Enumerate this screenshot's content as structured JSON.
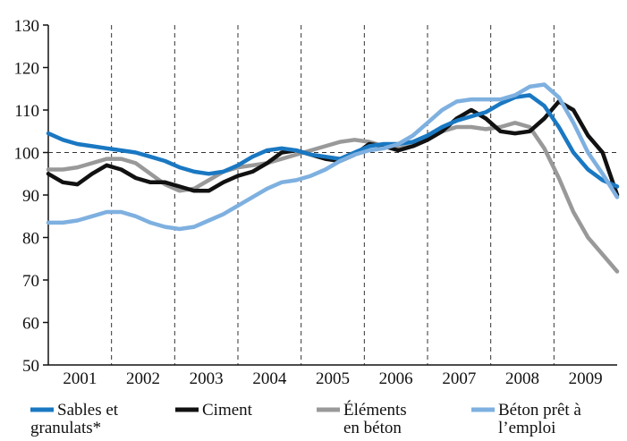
{
  "chart_data": {
    "type": "line",
    "title": "",
    "xlabel": "",
    "ylabel": "",
    "ylim": [
      50,
      130
    ],
    "yticks": [
      50,
      60,
      70,
      80,
      90,
      100,
      110,
      120,
      130
    ],
    "xlim": [
      2000.0,
      2009.75
    ],
    "year_labels": [
      "2001",
      "2002",
      "2003",
      "2004",
      "2005",
      "2006",
      "2007",
      "2008",
      "2009"
    ],
    "reference_line": 100,
    "grid": "dashed vertical lines between years; dashed horizontal line at 100",
    "legend_position": "bottom",
    "series": [
      {
        "name": "Sables et granulats*",
        "color": "#1a78c2",
        "x": [
          2000.0,
          2000.25,
          2000.5,
          2000.75,
          2001.0,
          2001.25,
          2001.5,
          2001.75,
          2002.0,
          2002.25,
          2002.5,
          2002.75,
          2003.0,
          2003.25,
          2003.5,
          2003.75,
          2004.0,
          2004.25,
          2004.5,
          2004.75,
          2005.0,
          2005.25,
          2005.5,
          2005.75,
          2006.0,
          2006.25,
          2006.5,
          2006.75,
          2007.0,
          2007.25,
          2007.5,
          2007.75,
          2008.0,
          2008.25,
          2008.5,
          2008.75,
          2009.0,
          2009.25,
          2009.5,
          2009.75
        ],
        "y": [
          104.5,
          103,
          102,
          101.5,
          101,
          100.5,
          100,
          99,
          98,
          96.5,
          95.5,
          95,
          95.5,
          97,
          99,
          100.5,
          101,
          100.5,
          99.5,
          99,
          98.5,
          100,
          101.5,
          102,
          102,
          102.5,
          104,
          106,
          107.5,
          108.5,
          109.5,
          111.5,
          113,
          113.5,
          111,
          106,
          100,
          96,
          93.5,
          92
        ]
      },
      {
        "name": "Ciment",
        "color": "#111111",
        "x": [
          2000.0,
          2000.25,
          2000.5,
          2000.75,
          2001.0,
          2001.25,
          2001.5,
          2001.75,
          2002.0,
          2002.25,
          2002.5,
          2002.75,
          2003.0,
          2003.25,
          2003.5,
          2003.75,
          2004.0,
          2004.25,
          2004.5,
          2004.75,
          2005.0,
          2005.25,
          2005.5,
          2005.75,
          2006.0,
          2006.25,
          2006.5,
          2006.75,
          2007.0,
          2007.25,
          2007.5,
          2007.75,
          2008.0,
          2008.25,
          2008.5,
          2008.75,
          2009.0,
          2009.25,
          2009.5,
          2009.75
        ],
        "y": [
          95,
          93,
          92.5,
          95,
          97,
          96,
          94,
          93,
          93,
          92,
          91,
          91,
          93,
          94.5,
          95.5,
          97.5,
          100,
          100.5,
          99.5,
          98.5,
          98,
          99.5,
          102,
          101.5,
          100.5,
          101.5,
          103,
          105,
          108,
          110,
          108,
          105,
          104.5,
          105,
          108,
          112,
          110,
          104,
          100,
          90
        ]
      },
      {
        "name": "Éléments en béton",
        "color": "#999999",
        "x": [
          2000.0,
          2000.25,
          2000.5,
          2000.75,
          2001.0,
          2001.25,
          2001.5,
          2001.75,
          2002.0,
          2002.25,
          2002.5,
          2002.75,
          2003.0,
          2003.25,
          2003.5,
          2003.75,
          2004.0,
          2004.25,
          2004.5,
          2004.75,
          2005.0,
          2005.25,
          2005.5,
          2005.75,
          2006.0,
          2006.25,
          2006.5,
          2006.75,
          2007.0,
          2007.25,
          2007.5,
          2007.75,
          2008.0,
          2008.25,
          2008.5,
          2008.75,
          2009.0,
          2009.25,
          2009.5,
          2009.75
        ],
        "y": [
          96,
          96,
          96.5,
          97.5,
          98.5,
          98.5,
          97.5,
          95,
          92.5,
          91,
          91.5,
          93.5,
          95.5,
          96.5,
          97,
          97.5,
          98.5,
          99.5,
          100.5,
          101.5,
          102.5,
          103,
          102.5,
          101.5,
          101,
          101.5,
          103,
          105,
          106,
          106,
          105.5,
          106,
          107,
          106,
          101,
          94,
          86,
          80,
          76,
          72
        ]
      },
      {
        "name": "Béton prêt à l’emploi",
        "color": "#7eb0e0",
        "x": [
          2000.0,
          2000.25,
          2000.5,
          2000.75,
          2001.0,
          2001.25,
          2001.5,
          2001.75,
          2002.0,
          2002.25,
          2002.5,
          2002.75,
          2003.0,
          2003.25,
          2003.5,
          2003.75,
          2004.0,
          2004.25,
          2004.5,
          2004.75,
          2005.0,
          2005.25,
          2005.5,
          2005.75,
          2006.0,
          2006.25,
          2006.5,
          2006.75,
          2007.0,
          2007.25,
          2007.5,
          2007.75,
          2008.0,
          2008.25,
          2008.5,
          2008.75,
          2009.0,
          2009.25,
          2009.5,
          2009.75
        ],
        "y": [
          83.5,
          83.5,
          84,
          85,
          86,
          86,
          85,
          83.5,
          82.5,
          82,
          82.5,
          84,
          85.5,
          87.5,
          89.5,
          91.5,
          93,
          93.5,
          94.5,
          96,
          98,
          99.5,
          100.5,
          101,
          102,
          104,
          107,
          110,
          112,
          112.5,
          112.5,
          112.5,
          113.5,
          115.5,
          116,
          113,
          107,
          100,
          95,
          89.5
        ]
      }
    ]
  },
  "legend": [
    {
      "line1": "Sables et",
      "line2": "granulats*"
    },
    {
      "line1": "Ciment",
      "line2": ""
    },
    {
      "line1": "Éléments",
      "line2": "en béton"
    },
    {
      "line1": "Béton prêt à",
      "line2": "l’emploi"
    }
  ]
}
